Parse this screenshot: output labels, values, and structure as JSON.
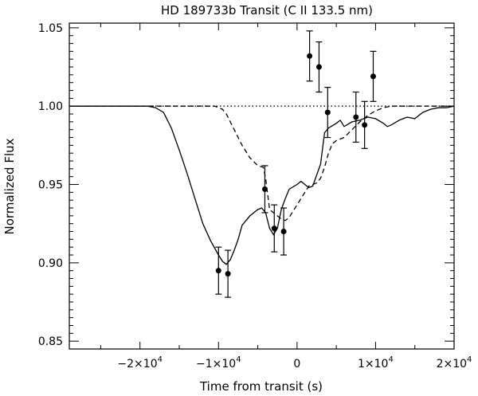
{
  "chart_data": {
    "type": "line",
    "title": "HD 189733b Transit (C II 133.5 nm)",
    "xlabel": "Time from transit (s)",
    "ylabel": "Normalized Flux",
    "xlim": [
      -29000,
      20000
    ],
    "ylim": [
      0.845,
      1.053
    ],
    "grid": false,
    "x_ticks": [
      {
        "value": -20000,
        "label": "−2×10",
        "exp": "4"
      },
      {
        "value": -10000,
        "label": "−1×10",
        "exp": "4"
      },
      {
        "value": 0,
        "label": "0",
        "exp": ""
      },
      {
        "value": 10000,
        "label": "1×10",
        "exp": "4"
      },
      {
        "value": 20000,
        "label": "2×10",
        "exp": "4"
      }
    ],
    "y_ticks": [
      {
        "value": 0.85,
        "label": "0.85"
      },
      {
        "value": 0.9,
        "label": "0.90"
      },
      {
        "value": 0.95,
        "label": "0.95"
      },
      {
        "value": 1.0,
        "label": "1.00"
      },
      {
        "value": 1.05,
        "label": "1.05"
      }
    ],
    "series": [
      {
        "style": "solid",
        "color": "#000000",
        "points": [
          [
            -29000,
            1.0
          ],
          [
            -22000,
            1.0
          ],
          [
            -19000,
            1.0
          ],
          [
            -18000,
            0.999
          ],
          [
            -17000,
            0.996
          ],
          [
            -16000,
            0.986
          ],
          [
            -15000,
            0.972
          ],
          [
            -14000,
            0.957
          ],
          [
            -13000,
            0.941
          ],
          [
            -12000,
            0.925
          ],
          [
            -11000,
            0.914
          ],
          [
            -10000,
            0.905
          ],
          [
            -9500,
            0.901
          ],
          [
            -9000,
            0.899
          ],
          [
            -8500,
            0.902
          ],
          [
            -8000,
            0.908
          ],
          [
            -7500,
            0.915
          ],
          [
            -7000,
            0.924
          ],
          [
            -6000,
            0.93
          ],
          [
            -5000,
            0.934
          ],
          [
            -4500,
            0.935
          ],
          [
            -4000,
            0.932
          ],
          [
            -3500,
            0.922
          ],
          [
            -3000,
            0.918
          ],
          [
            -2500,
            0.922
          ],
          [
            -2000,
            0.934
          ],
          [
            -1500,
            0.941
          ],
          [
            -1000,
            0.947
          ],
          [
            0,
            0.95
          ],
          [
            500,
            0.952
          ],
          [
            1000,
            0.95
          ],
          [
            1500,
            0.948
          ],
          [
            2000,
            0.949
          ],
          [
            2500,
            0.956
          ],
          [
            3000,
            0.963
          ],
          [
            3500,
            0.983
          ],
          [
            4000,
            0.986
          ],
          [
            5000,
            0.989
          ],
          [
            5500,
            0.991
          ],
          [
            6000,
            0.987
          ],
          [
            7000,
            0.99
          ],
          [
            8000,
            0.991
          ],
          [
            9000,
            0.993
          ],
          [
            10000,
            0.992
          ],
          [
            11000,
            0.989
          ],
          [
            11500,
            0.987
          ],
          [
            12000,
            0.988
          ],
          [
            13000,
            0.991
          ],
          [
            14000,
            0.993
          ],
          [
            15000,
            0.992
          ],
          [
            16000,
            0.996
          ],
          [
            17000,
            0.998
          ],
          [
            18000,
            0.999
          ],
          [
            19000,
            0.999
          ],
          [
            20000,
            1.0
          ]
        ]
      },
      {
        "style": "dashed",
        "color": "#000000",
        "points": [
          [
            -29000,
            1.0
          ],
          [
            -12500,
            1.0
          ],
          [
            -10500,
            1.0
          ],
          [
            -9500,
            0.998
          ],
          [
            -9000,
            0.995
          ],
          [
            -8000,
            0.985
          ],
          [
            -7000,
            0.975
          ],
          [
            -6000,
            0.967
          ],
          [
            -5000,
            0.962
          ],
          [
            -4300,
            0.961
          ],
          [
            -4000,
            0.954
          ],
          [
            -3500,
            0.934
          ],
          [
            -2500,
            0.93
          ],
          [
            -2000,
            0.928
          ],
          [
            -1500,
            0.927
          ],
          [
            -1000,
            0.929
          ],
          [
            -500,
            0.933
          ],
          [
            0,
            0.937
          ],
          [
            500,
            0.941
          ],
          [
            1000,
            0.945
          ],
          [
            1500,
            0.949
          ],
          [
            2500,
            0.951
          ],
          [
            3000,
            0.954
          ],
          [
            3500,
            0.961
          ],
          [
            4000,
            0.97
          ],
          [
            4500,
            0.976
          ],
          [
            5000,
            0.978
          ],
          [
            6000,
            0.98
          ],
          [
            7000,
            0.985
          ],
          [
            8000,
            0.99
          ],
          [
            9000,
            0.994
          ],
          [
            10000,
            0.997
          ],
          [
            11000,
            0.999
          ],
          [
            12000,
            1.0
          ],
          [
            20000,
            1.0
          ]
        ]
      },
      {
        "style": "dotted",
        "color": "#000000",
        "points": [
          [
            -29000,
            1.0
          ],
          [
            20000,
            1.0
          ]
        ]
      }
    ],
    "data_points": [
      {
        "x": -10000,
        "y": 0.895,
        "err": 0.015
      },
      {
        "x": -8800,
        "y": 0.893,
        "err": 0.015
      },
      {
        "x": -4100,
        "y": 0.947,
        "err": 0.015
      },
      {
        "x": -2900,
        "y": 0.922,
        "err": 0.015
      },
      {
        "x": -1700,
        "y": 0.92,
        "err": 0.015
      },
      {
        "x": 1600,
        "y": 1.032,
        "err": 0.016
      },
      {
        "x": 2800,
        "y": 1.025,
        "err": 0.016
      },
      {
        "x": 3900,
        "y": 0.996,
        "err": 0.016
      },
      {
        "x": 7500,
        "y": 0.993,
        "err": 0.016
      },
      {
        "x": 8600,
        "y": 0.988,
        "err": 0.015
      },
      {
        "x": 9700,
        "y": 1.019,
        "err": 0.016
      }
    ]
  }
}
